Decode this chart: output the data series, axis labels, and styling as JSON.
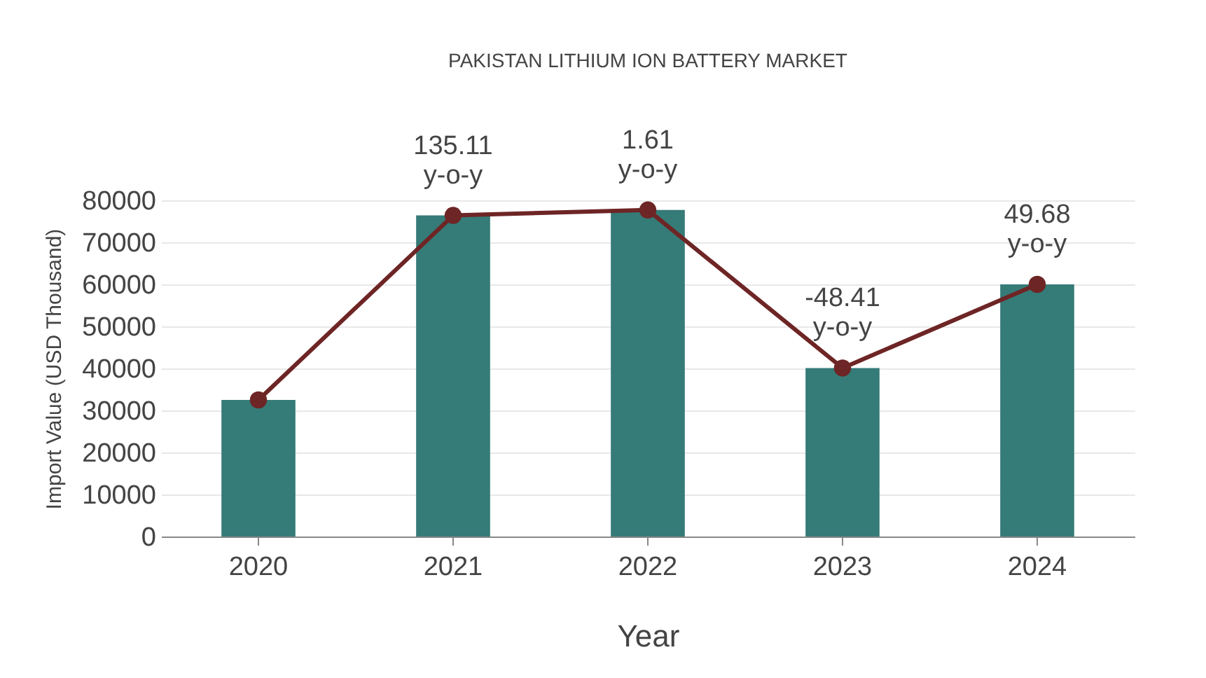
{
  "chart_data": {
    "type": "bar",
    "title": "PAKISTAN LITHIUM ION BATTERY MARKET",
    "xlabel": "Year",
    "ylabel": "Import Value (USD Thousand)",
    "categories": [
      "2020",
      "2021",
      "2022",
      "2023",
      "2024"
    ],
    "series": [
      {
        "color": "#357b78",
        "values": [
          32500,
          76400,
          77700,
          40100,
          60000
        ]
      },
      {
        "type": "line",
        "color": "#6e2525",
        "values": [
          32500,
          76400,
          77700,
          40100,
          60000
        ]
      }
    ],
    "ylim": [
      0,
      80000
    ],
    "yticks": [
      0,
      10000,
      20000,
      30000,
      40000,
      50000,
      60000,
      70000,
      80000
    ],
    "grid": "y",
    "marker": "circle",
    "line_style": "solid",
    "annotations": [
      {
        "text": "135.11\ny-o-y",
        "x": "2021",
        "y": 76400
      },
      {
        "text": "1.61\ny-o-y",
        "x": "2022",
        "y": 77700
      },
      {
        "text": "-48.41\ny-o-y",
        "x": "2023",
        "y": 40100
      },
      {
        "text": "49.68\ny-o-y",
        "x": "2024",
        "y": 60000
      }
    ]
  }
}
